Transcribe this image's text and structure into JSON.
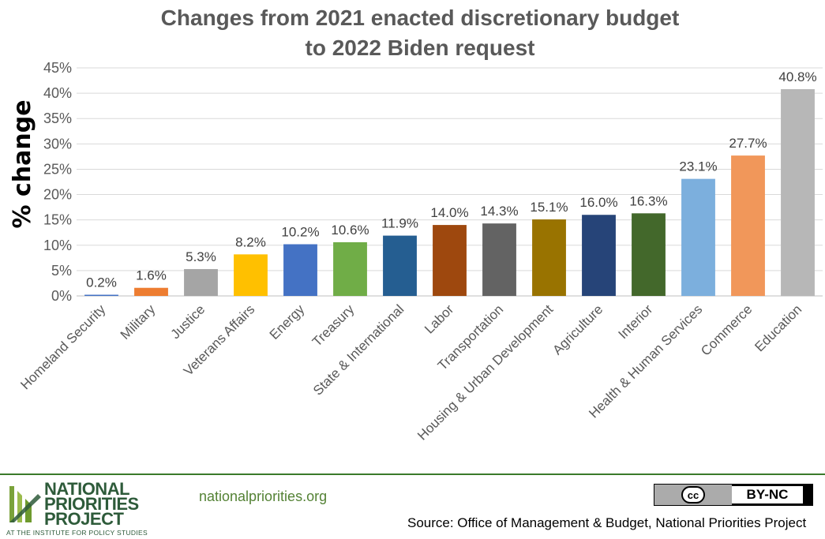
{
  "chart_data": {
    "type": "bar",
    "title": "Changes from 2021 enacted discretionary budget to 2022 Biden request",
    "title_lines": [
      "Changes from 2021 enacted discretionary budget",
      "to 2022 Biden request"
    ],
    "xlabel": "",
    "ylabel": "% change",
    "ylim": [
      0,
      45
    ],
    "yticks": [
      0,
      5,
      10,
      15,
      20,
      25,
      30,
      35,
      40,
      45
    ],
    "ytick_labels": [
      "0%",
      "5%",
      "10%",
      "15%",
      "20%",
      "25%",
      "30%",
      "35%",
      "40%",
      "45%"
    ],
    "grid": true,
    "legend": "none",
    "categories": [
      "Homeland Security",
      "Military",
      "Justice",
      "Veterans Affairs",
      "Energy",
      "Treasury",
      "State & International",
      "Labor",
      "Transportation",
      "Housing & Urban Development",
      "Agriculture",
      "Interior",
      "Health & Human Services",
      "Commerce",
      "Education"
    ],
    "values": [
      0.2,
      1.6,
      5.3,
      8.2,
      10.2,
      10.6,
      11.9,
      14.0,
      14.3,
      15.1,
      16.0,
      16.3,
      23.1,
      27.7,
      40.8
    ],
    "data_labels": [
      "0.2%",
      "1.6%",
      "5.3%",
      "8.2%",
      "10.2%",
      "10.6%",
      "11.9%",
      "14.0%",
      "14.3%",
      "15.1%",
      "16.0%",
      "16.3%",
      "23.1%",
      "27.7%",
      "40.8%"
    ],
    "colors": [
      "#4472c4",
      "#ed7d31",
      "#a5a5a5",
      "#ffc000",
      "#4472c4",
      "#70ad47",
      "#255e91",
      "#9e480e",
      "#636363",
      "#997300",
      "#264478",
      "#43682b",
      "#7cafdd",
      "#f1975a",
      "#b7b7b7"
    ]
  },
  "footer": {
    "logo_text": [
      "NATIONAL",
      "PRIORITIES",
      "PROJECT"
    ],
    "logo_subtext": "AT THE INSTITUTE FOR POLICY STUDIES",
    "website": "nationalpriorities.org",
    "license_symbol": "cc",
    "license": "BY-NC",
    "source": "Source: Office of Management & Budget, National Priorities Project"
  }
}
